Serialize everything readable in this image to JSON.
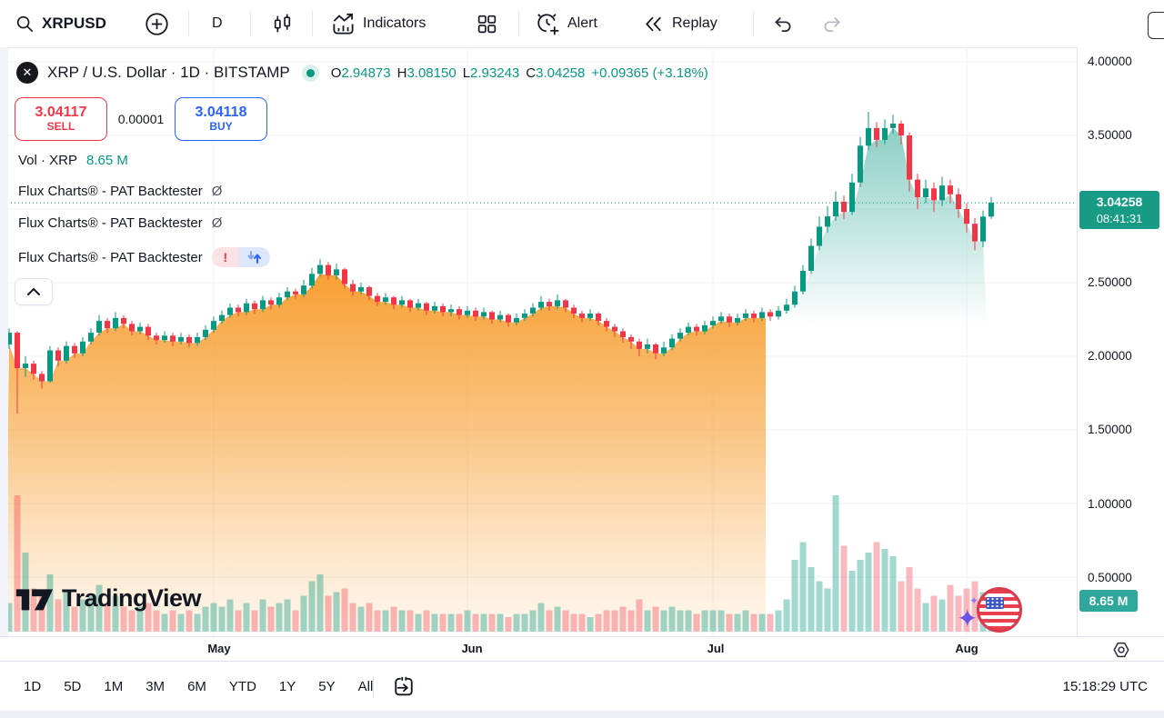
{
  "toolbar": {
    "symbol": "XRPUSD",
    "interval": "D",
    "indicators_label": "Indicators",
    "alert_label": "Alert",
    "replay_label": "Replay"
  },
  "legend": {
    "title": "XRP / U.S. Dollar · 1D · BITSTAMP",
    "ohlc": {
      "o_label": "O",
      "o": "2.94873",
      "h_label": "H",
      "h": "3.08150",
      "l_label": "L",
      "l": "2.93243",
      "c_label": "C",
      "c": "3.04258",
      "change": "+0.09365 (+3.18%)"
    },
    "sell": {
      "price": "3.04117",
      "label": "SELL"
    },
    "spread": "0.00001",
    "buy": {
      "price": "3.04118",
      "label": "BUY"
    },
    "volume_row": {
      "label": "Vol · XRP",
      "value": "8.65 M"
    },
    "flux_rows": [
      {
        "name": "Flux Charts® - PAT Backtester",
        "suffix": "Ø"
      },
      {
        "name": "Flux Charts® - PAT Backtester",
        "suffix": "Ø"
      },
      {
        "name": "Flux Charts® - PAT Backtester",
        "suffix": "",
        "error_badge": "!"
      }
    ]
  },
  "price_axis": {
    "ticks": [
      {
        "label": "4.00000",
        "price": 4.0
      },
      {
        "label": "3.50000",
        "price": 3.5
      },
      {
        "label": "2.50000",
        "price": 2.5
      },
      {
        "label": "2.00000",
        "price": 2.0
      },
      {
        "label": "1.50000",
        "price": 1.5
      },
      {
        "label": "1.00000",
        "price": 1.0
      },
      {
        "label": "0.50000",
        "price": 0.5
      }
    ],
    "last_price_badge": {
      "price": "3.04258",
      "countdown": "08:41:31"
    },
    "volume_badge": {
      "value": "8.65 M"
    }
  },
  "time_axis": {
    "months": [
      {
        "label": "May",
        "index": 25
      },
      {
        "label": "Jun",
        "index": 56
      },
      {
        "label": "Jul",
        "index": 86
      },
      {
        "label": "Aug",
        "index": 117
      }
    ]
  },
  "bottom_toolbar": {
    "ranges": [
      "1D",
      "5D",
      "1M",
      "3M",
      "6M",
      "YTD",
      "1Y",
      "5Y",
      "All"
    ],
    "clock": "15:18:29 UTC"
  },
  "watermark": "TradingView",
  "chart_data": {
    "type": "candlestick",
    "title": "XRP / U.S. Dollar, 1D, BITSTAMP",
    "symbol": "XRPUSD",
    "exchange": "BITSTAMP",
    "interval": "1D",
    "y_ticks": [
      4.0,
      3.5,
      3.0,
      2.5,
      2.0,
      1.5,
      1.0,
      0.5
    ],
    "y_range": [
      0.3,
      4.1
    ],
    "last_price": 3.04258,
    "last_candle": {
      "open": 2.94873,
      "high": 3.0815,
      "low": 2.93243,
      "close": 3.04258,
      "change": 0.09365,
      "change_pct": 3.18
    },
    "countdown": "08:41:31",
    "current_volume_m": 8.65,
    "colors": {
      "up": "#089981",
      "down": "#f23645",
      "vol_up": "rgba(8,153,129,0.38)",
      "vol_down": "rgba(242,54,69,0.35)",
      "orange_fill": "#f7941d",
      "teal_fill": "#089981",
      "grid": "#eef1f7",
      "last_price_line": "#089981"
    },
    "zones": {
      "orange": {
        "from": 0,
        "to": 92,
        "fade_bottom_price": 0.13
      },
      "teal": {
        "from": 94,
        "to": 119,
        "fade_bottom_price": 2.22
      }
    },
    "candles": [
      [
        2.08,
        2.19,
        2.05,
        2.16
      ],
      [
        2.16,
        2.17,
        1.61,
        1.92
      ],
      [
        1.92,
        2.0,
        1.86,
        1.95
      ],
      [
        1.95,
        1.97,
        1.84,
        1.88
      ],
      [
        1.88,
        1.9,
        1.78,
        1.83
      ],
      [
        1.83,
        2.07,
        1.82,
        2.04
      ],
      [
        2.04,
        2.06,
        1.93,
        1.97
      ],
      [
        1.97,
        2.1,
        1.95,
        2.07
      ],
      [
        2.07,
        2.09,
        1.99,
        2.02
      ],
      [
        2.02,
        2.13,
        2.0,
        2.1
      ],
      [
        2.1,
        2.19,
        2.08,
        2.16
      ],
      [
        2.16,
        2.28,
        2.14,
        2.24
      ],
      [
        2.24,
        2.26,
        2.16,
        2.19
      ],
      [
        2.19,
        2.3,
        2.17,
        2.26
      ],
      [
        2.26,
        2.28,
        2.19,
        2.22
      ],
      [
        2.22,
        2.24,
        2.14,
        2.17
      ],
      [
        2.17,
        2.23,
        2.15,
        2.2
      ],
      [
        2.2,
        2.22,
        2.11,
        2.14
      ],
      [
        2.14,
        2.16,
        2.08,
        2.11
      ],
      [
        2.11,
        2.17,
        2.09,
        2.14
      ],
      [
        2.14,
        2.16,
        2.07,
        2.1
      ],
      [
        2.1,
        2.16,
        2.08,
        2.13
      ],
      [
        2.13,
        2.15,
        2.06,
        2.09
      ],
      [
        2.09,
        2.16,
        2.07,
        2.13
      ],
      [
        2.13,
        2.21,
        2.11,
        2.18
      ],
      [
        2.18,
        2.27,
        2.16,
        2.24
      ],
      [
        2.24,
        2.31,
        2.22,
        2.28
      ],
      [
        2.28,
        2.36,
        2.26,
        2.33
      ],
      [
        2.33,
        2.35,
        2.27,
        2.3
      ],
      [
        2.3,
        2.39,
        2.28,
        2.36
      ],
      [
        2.36,
        2.38,
        2.29,
        2.32
      ],
      [
        2.32,
        2.41,
        2.3,
        2.38
      ],
      [
        2.38,
        2.4,
        2.32,
        2.35
      ],
      [
        2.35,
        2.43,
        2.33,
        2.4
      ],
      [
        2.4,
        2.47,
        2.38,
        2.44
      ],
      [
        2.44,
        2.46,
        2.39,
        2.42
      ],
      [
        2.42,
        2.52,
        2.4,
        2.48
      ],
      [
        2.48,
        2.6,
        2.46,
        2.56
      ],
      [
        2.56,
        2.66,
        2.54,
        2.62
      ],
      [
        2.62,
        2.64,
        2.52,
        2.55
      ],
      [
        2.55,
        2.63,
        2.52,
        2.59
      ],
      [
        2.59,
        2.6,
        2.46,
        2.49
      ],
      [
        2.49,
        2.52,
        2.41,
        2.44
      ],
      [
        2.44,
        2.5,
        2.42,
        2.47
      ],
      [
        2.47,
        2.48,
        2.38,
        2.41
      ],
      [
        2.41,
        2.43,
        2.34,
        2.37
      ],
      [
        2.37,
        2.43,
        2.35,
        2.4
      ],
      [
        2.4,
        2.41,
        2.32,
        2.35
      ],
      [
        2.35,
        2.41,
        2.33,
        2.38
      ],
      [
        2.38,
        2.39,
        2.3,
        2.33
      ],
      [
        2.33,
        2.39,
        2.31,
        2.36
      ],
      [
        2.36,
        2.37,
        2.28,
        2.31
      ],
      [
        2.31,
        2.37,
        2.29,
        2.34
      ],
      [
        2.34,
        2.36,
        2.27,
        2.3
      ],
      [
        2.3,
        2.35,
        2.27,
        2.32
      ],
      [
        2.32,
        2.34,
        2.25,
        2.28
      ],
      [
        2.28,
        2.34,
        2.26,
        2.31
      ],
      [
        2.31,
        2.33,
        2.24,
        2.27
      ],
      [
        2.27,
        2.33,
        2.25,
        2.3
      ],
      [
        2.3,
        2.31,
        2.22,
        2.25
      ],
      [
        2.25,
        2.31,
        2.23,
        2.28
      ],
      [
        2.28,
        2.29,
        2.2,
        2.23
      ],
      [
        2.23,
        2.29,
        2.21,
        2.26
      ],
      [
        2.26,
        2.32,
        2.24,
        2.29
      ],
      [
        2.29,
        2.36,
        2.27,
        2.33
      ],
      [
        2.33,
        2.41,
        2.31,
        2.37
      ],
      [
        2.37,
        2.39,
        2.31,
        2.34
      ],
      [
        2.34,
        2.42,
        2.32,
        2.38
      ],
      [
        2.38,
        2.39,
        2.3,
        2.33
      ],
      [
        2.33,
        2.35,
        2.26,
        2.29
      ],
      [
        2.29,
        2.31,
        2.23,
        2.26
      ],
      [
        2.26,
        2.32,
        2.24,
        2.29
      ],
      [
        2.29,
        2.3,
        2.21,
        2.24
      ],
      [
        2.24,
        2.26,
        2.17,
        2.2
      ],
      [
        2.2,
        2.22,
        2.13,
        2.17
      ],
      [
        2.17,
        2.19,
        2.09,
        2.13
      ],
      [
        2.13,
        2.15,
        2.05,
        2.1
      ],
      [
        2.1,
        2.12,
        2.0,
        2.05
      ],
      [
        2.05,
        2.12,
        2.02,
        2.08
      ],
      [
        2.08,
        2.09,
        1.98,
        2.02
      ],
      [
        2.02,
        2.1,
        2.0,
        2.06
      ],
      [
        2.06,
        2.15,
        2.04,
        2.12
      ],
      [
        2.12,
        2.19,
        2.1,
        2.16
      ],
      [
        2.16,
        2.23,
        2.14,
        2.2
      ],
      [
        2.2,
        2.22,
        2.14,
        2.17
      ],
      [
        2.17,
        2.24,
        2.15,
        2.21
      ],
      [
        2.21,
        2.27,
        2.19,
        2.24
      ],
      [
        2.24,
        2.3,
        2.22,
        2.27
      ],
      [
        2.27,
        2.29,
        2.2,
        2.23
      ],
      [
        2.23,
        2.29,
        2.21,
        2.26
      ],
      [
        2.26,
        2.32,
        2.24,
        2.29
      ],
      [
        2.29,
        2.31,
        2.23,
        2.26
      ],
      [
        2.26,
        2.33,
        2.24,
        2.3
      ],
      [
        2.3,
        2.32,
        2.24,
        2.27
      ],
      [
        2.27,
        2.34,
        2.25,
        2.31
      ],
      [
        2.31,
        2.39,
        2.29,
        2.35
      ],
      [
        2.35,
        2.48,
        2.33,
        2.44
      ],
      [
        2.44,
        2.62,
        2.42,
        2.58
      ],
      [
        2.58,
        2.8,
        2.56,
        2.75
      ],
      [
        2.75,
        2.95,
        2.72,
        2.88
      ],
      [
        2.88,
        3.02,
        2.84,
        2.95
      ],
      [
        2.95,
        3.12,
        2.92,
        3.05
      ],
      [
        3.05,
        3.09,
        2.93,
        2.98
      ],
      [
        2.98,
        3.24,
        2.96,
        3.18
      ],
      [
        3.18,
        3.49,
        3.15,
        3.43
      ],
      [
        3.43,
        3.66,
        3.4,
        3.55
      ],
      [
        3.55,
        3.59,
        3.42,
        3.47
      ],
      [
        3.47,
        3.61,
        3.44,
        3.55
      ],
      [
        3.55,
        3.64,
        3.51,
        3.58
      ],
      [
        3.58,
        3.6,
        3.44,
        3.5
      ],
      [
        3.5,
        3.52,
        3.12,
        3.2
      ],
      [
        3.2,
        3.24,
        3.0,
        3.08
      ],
      [
        3.08,
        3.2,
        3.04,
        3.14
      ],
      [
        3.14,
        3.18,
        2.98,
        3.06
      ],
      [
        3.06,
        3.22,
        3.02,
        3.16
      ],
      [
        3.16,
        3.2,
        3.04,
        3.1
      ],
      [
        3.1,
        3.14,
        2.94,
        3.0
      ],
      [
        3.0,
        3.04,
        2.84,
        2.9
      ],
      [
        2.9,
        2.94,
        2.72,
        2.78
      ],
      [
        2.78,
        2.99,
        2.74,
        2.949
      ],
      [
        2.94873,
        3.0815,
        2.93243,
        3.04258
      ]
    ],
    "volumes_m": [
      8,
      38,
      22,
      12,
      10,
      16,
      9,
      11,
      7,
      9,
      10,
      13,
      8,
      10,
      7,
      6,
      7,
      8,
      6,
      5,
      6,
      5,
      6,
      5,
      7,
      8,
      7,
      9,
      6,
      8,
      6,
      9,
      7,
      8,
      9,
      6,
      10,
      14,
      16,
      10,
      11,
      12,
      8,
      7,
      8,
      6,
      6,
      7,
      6,
      6,
      5,
      6,
      5,
      5,
      5,
      5,
      6,
      5,
      5,
      5,
      5,
      4,
      5,
      5,
      6,
      8,
      6,
      7,
      6,
      5,
      5,
      4,
      5,
      6,
      6,
      7,
      6,
      9,
      6,
      7,
      6,
      7,
      6,
      6,
      5,
      6,
      6,
      6,
      5,
      5,
      6,
      5,
      5,
      5,
      6,
      9,
      20,
      25,
      18,
      14,
      12,
      38,
      24,
      17,
      20,
      22,
      25,
      23,
      21,
      14,
      18,
      12,
      8,
      10,
      9,
      13,
      10,
      12,
      14,
      11,
      8.65
    ]
  }
}
